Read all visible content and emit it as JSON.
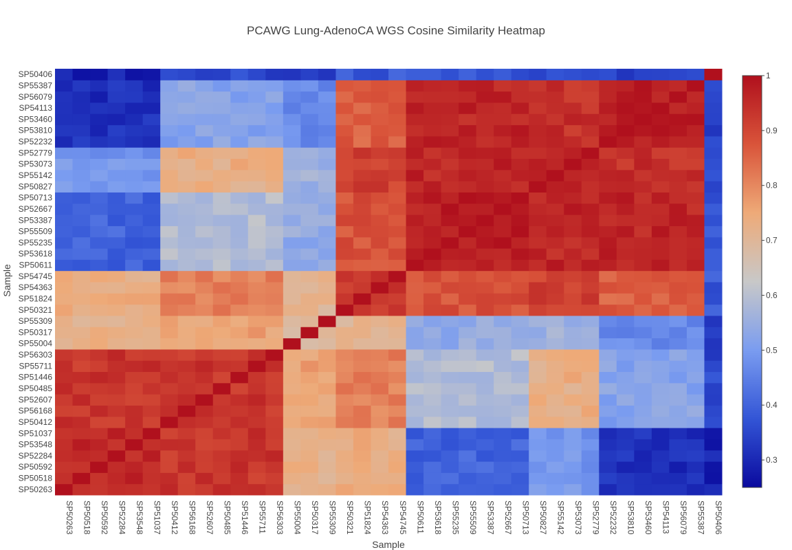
{
  "chart_data": {
    "type": "heatmap",
    "title": "PCAWG Lung-AdenoCA WGS Cosine Similarity Heatmap",
    "xlabel": "Sample",
    "ylabel": "Sample",
    "colorscale": [
      "#0a0a9e",
      "#3355d6",
      "#7a9cf0",
      "#c8c8c8",
      "#eeaa78",
      "#d9543a",
      "#b0101d"
    ],
    "zrange": [
      0.25,
      1.0
    ],
    "colorbar_ticks": [
      {
        "value": 1,
        "label": "1"
      },
      {
        "value": 0.9,
        "label": "0.9"
      },
      {
        "value": 0.8,
        "label": "0.8"
      },
      {
        "value": 0.7,
        "label": "0.7"
      },
      {
        "value": 0.6,
        "label": "0.6"
      },
      {
        "value": 0.5,
        "label": "0.5"
      },
      {
        "value": 0.4,
        "label": "0.4"
      },
      {
        "value": 0.3,
        "label": "0.3"
      }
    ],
    "samples": [
      "SP50263",
      "SP50518",
      "SP50592",
      "SP52284",
      "SP53548",
      "SP51037",
      "SP50412",
      "SP56168",
      "SP52607",
      "SP50485",
      "SP51446",
      "SP55711",
      "SP56303",
      "SP55004",
      "SP50317",
      "SP55309",
      "SP50321",
      "SP51824",
      "SP54363",
      "SP54745",
      "SP50611",
      "SP53618",
      "SP55235",
      "SP55509",
      "SP53387",
      "SP52667",
      "SP50713",
      "SP50827",
      "SP55142",
      "SP53073",
      "SP52779",
      "SP52232",
      "SP53810",
      "SP53460",
      "SP54113",
      "SP56079",
      "SP55387",
      "SP50406"
    ],
    "groups": {
      "A": [
        "SP50263",
        "SP50518",
        "SP50592",
        "SP52284",
        "SP53548",
        "SP51037"
      ],
      "B": [
        "SP50412",
        "SP56168",
        "SP52607",
        "SP50485",
        "SP51446",
        "SP55711",
        "SP56303"
      ],
      "C": [
        "SP55004",
        "SP50317",
        "SP55309"
      ],
      "D": [
        "SP50321",
        "SP51824",
        "SP54363",
        "SP54745"
      ],
      "E": [
        "SP50611",
        "SP53618",
        "SP55235",
        "SP55509",
        "SP53387",
        "SP52667",
        "SP50713"
      ],
      "F": [
        "SP50827",
        "SP55142",
        "SP53073",
        "SP52779"
      ],
      "G": [
        "SP52232",
        "SP53810",
        "SP53460",
        "SP54113",
        "SP56079",
        "SP55387"
      ],
      "H": [
        "SP50406"
      ]
    },
    "group_similarity": {
      "A": {
        "A": 0.96,
        "B": 0.93,
        "C": 0.72,
        "D": 0.73,
        "E": 0.4,
        "F": 0.49,
        "G": 0.31,
        "H": 0.29
      },
      "B": {
        "A": 0.93,
        "B": 0.93,
        "C": 0.76,
        "D": 0.81,
        "E": 0.59,
        "F": 0.73,
        "G": 0.52,
        "H": 0.35
      },
      "C": {
        "A": 0.72,
        "B": 0.76,
        "C": 0.7,
        "D": 0.7,
        "E": 0.54,
        "F": 0.56,
        "G": 0.47,
        "H": 0.33
      },
      "D": {
        "A": 0.73,
        "B": 0.81,
        "C": 0.7,
        "D": 0.93,
        "E": 0.88,
        "F": 0.91,
        "G": 0.86,
        "H": 0.38
      },
      "E": {
        "A": 0.4,
        "B": 0.59,
        "C": 0.54,
        "D": 0.88,
        "E": 0.97,
        "F": 0.96,
        "G": 0.96,
        "H": 0.37
      },
      "F": {
        "A": 0.49,
        "B": 0.73,
        "C": 0.56,
        "D": 0.91,
        "E": 0.96,
        "F": 0.97,
        "G": 0.94,
        "H": 0.37
      },
      "G": {
        "A": 0.31,
        "B": 0.52,
        "C": 0.47,
        "D": 0.86,
        "E": 0.96,
        "F": 0.94,
        "G": 0.97,
        "H": 0.35
      },
      "H": {
        "A": 0.29,
        "B": 0.35,
        "C": 0.33,
        "D": 0.38,
        "E": 0.37,
        "F": 0.37,
        "G": 0.35,
        "H": 1.0
      }
    },
    "diagonal_value": 1.0
  }
}
